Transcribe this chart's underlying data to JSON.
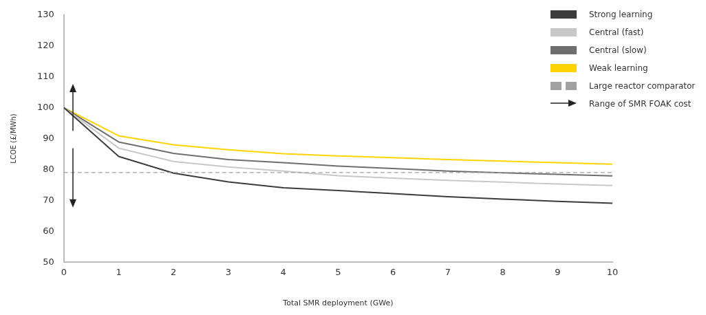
{
  "chart_data": {
    "type": "line",
    "xlabel": "Total SMR deployment (GWe)",
    "ylabel": "LCOE (£/MWh)",
    "x": [
      0,
      1,
      2,
      3,
      4,
      5,
      6,
      7,
      8,
      9,
      10
    ],
    "series": [
      {
        "name": "Strong learning",
        "color": "#3c3c3c",
        "values": [
          100,
          84.2,
          78.8,
          76.0,
          74.1,
          73.2,
          72.2,
          71.2,
          70.4,
          69.7,
          69.1
        ]
      },
      {
        "name": "Central (fast)",
        "color": "#c8c8c8",
        "values": [
          100,
          86.9,
          82.6,
          80.8,
          79.5,
          78.0,
          77.2,
          76.5,
          75.9,
          75.3,
          74.8
        ]
      },
      {
        "name": "Central (slow)",
        "color": "#6e6e6e",
        "values": [
          100,
          88.9,
          85.2,
          83.2,
          82.2,
          81.1,
          80.3,
          79.5,
          78.9,
          78.4,
          77.9
        ]
      },
      {
        "name": "Weak learning",
        "color": "#ffd200",
        "values": [
          100,
          90.9,
          88.0,
          86.4,
          85.1,
          84.4,
          83.8,
          83.2,
          82.7,
          82.2,
          81.7
        ]
      }
    ],
    "ref_lines": [
      {
        "axis": "y",
        "value": 79,
        "label": "Large reactor comparator",
        "color": "#a0a0a0",
        "line_style": "dashed"
      }
    ],
    "annotations": [
      "Range of SMR FOAK cost"
    ],
    "xlim": [
      0,
      10
    ],
    "xticks": [
      0,
      1,
      2,
      3,
      4,
      5,
      6,
      7,
      8,
      9,
      10
    ],
    "ylim": [
      50,
      130
    ],
    "yticks": [
      50,
      60,
      70,
      80,
      90,
      100,
      110,
      120,
      130
    ],
    "grid": false,
    "legend": "top right",
    "marker": "none",
    "line_style": "solid"
  }
}
